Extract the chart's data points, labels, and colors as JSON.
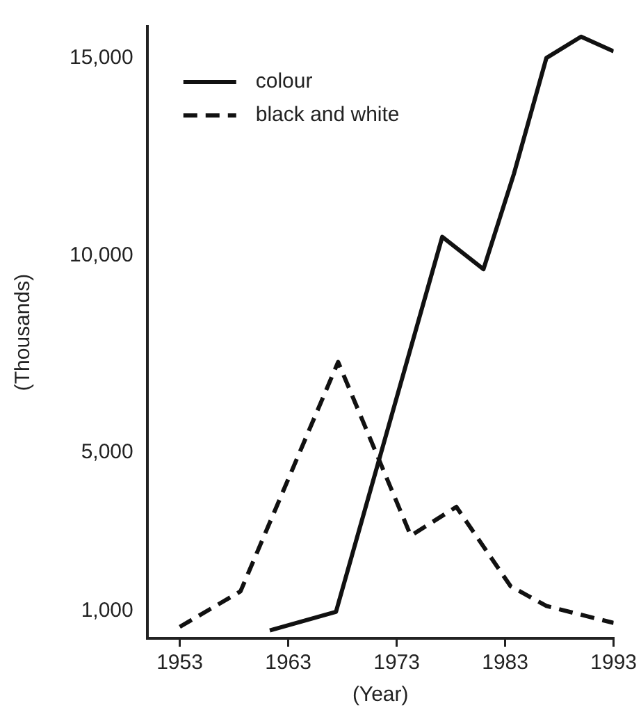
{
  "chart_data": {
    "type": "line",
    "xlabel": "(Year)",
    "ylabel": "(Thousands)",
    "xlim": [
      1950,
      1993
    ],
    "xticks": [
      1953,
      1963,
      1973,
      1983,
      1993
    ],
    "ylim": [
      300,
      15800
    ],
    "yticks": [
      {
        "value": 1000,
        "label": "1,000"
      },
      {
        "value": 5000,
        "label": "5,000"
      },
      {
        "value": 10000,
        "label": "10,000"
      },
      {
        "value": 15000,
        "label": "15,000"
      }
    ],
    "grid": false,
    "legend": "top left",
    "marker": "none",
    "series": [
      {
        "name": "colour",
        "color": "#111111",
        "line_style": "solid",
        "x": [
          1961.3,
          1967.4,
          1977.2,
          1981,
          1983.8,
          1986.8,
          1990,
          1993
        ],
        "values": [
          500,
          970,
          10470,
          9650,
          12060,
          15000,
          15540,
          15170
        ]
      },
      {
        "name": "black and white",
        "color": "#111111",
        "line_style": "dashed",
        "x": [
          1953,
          1958.6,
          1967.6,
          1974.3,
          1978.5,
          1983.5,
          1986.8,
          1993
        ],
        "values": [
          590,
          1490,
          7300,
          2900,
          3630,
          1620,
          1120,
          690
        ]
      }
    ]
  }
}
